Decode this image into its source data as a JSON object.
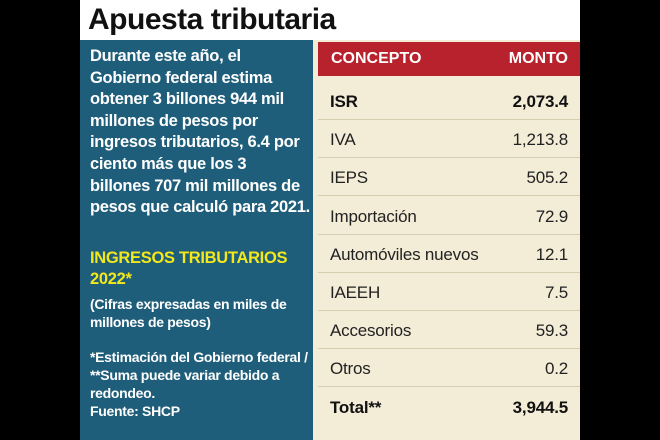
{
  "title": "Apuesta tributaria",
  "intro": "Durante este año, el Gobierno federal estima obtener 3 billones 944 mil millones de pesos por ingresos tributarios, 6.4 por ciento más que los 3 billones 707 mil millones de pesos que calculó para 2021.",
  "subhead": "INGRESOS TRIBUTARIOS 2022*",
  "units": "(Cifras expresadas en miles de millones de pesos)",
  "footnote": "*Estimación del Gobierno federal / **Suma puede variar debido a redondeo.",
  "source": "Fuente: SHCP",
  "table": {
    "headers": {
      "concept": "CONCEPTO",
      "amount": "MONTO"
    },
    "rows": [
      {
        "concept": "ISR",
        "amount": "2,073.4",
        "bold": true
      },
      {
        "concept": "IVA",
        "amount": "1,213.8",
        "bold": false
      },
      {
        "concept": "IEPS",
        "amount": "505.2",
        "bold": false
      },
      {
        "concept": "Importación",
        "amount": "72.9",
        "bold": false
      },
      {
        "concept": "Automóviles nuevos",
        "amount": "12.1",
        "bold": false
      },
      {
        "concept": "IAEEH",
        "amount": "7.5",
        "bold": false
      },
      {
        "concept": "Accesorios",
        "amount": "59.3",
        "bold": false
      },
      {
        "concept": "Otros",
        "amount": "0.2",
        "bold": false
      },
      {
        "concept": "Total**",
        "amount": "3,944.5",
        "bold": true
      }
    ]
  },
  "colors": {
    "panel_blue": "#1f5e7a",
    "header_red": "#b8222c",
    "highlight_yellow": "#f2e81a",
    "table_background": "#f3ecd6"
  }
}
